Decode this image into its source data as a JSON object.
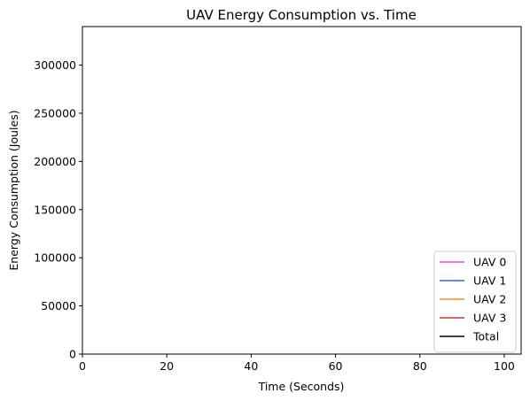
{
  "chart_data": {
    "type": "line",
    "title": "UAV Energy Consumption vs. Time",
    "xlabel": "Time (Seconds)",
    "ylabel": "Energy Consumption (Joules)",
    "xlim": [
      0,
      104
    ],
    "ylim": [
      0,
      340000
    ],
    "xticks": [
      0,
      20,
      40,
      60,
      80,
      100
    ],
    "yticks": [
      0,
      50000,
      100000,
      150000,
      200000,
      250000,
      300000
    ],
    "grid": false,
    "legend_position": "lower-right",
    "series": [
      {
        "name": "UAV 0",
        "color": "#ee44ee",
        "x": [],
        "y": []
      },
      {
        "name": "UAV 1",
        "color": "#3a64d8",
        "x": [],
        "y": []
      },
      {
        "name": "UAV 2",
        "color": "#ff8c1a",
        "x": [],
        "y": []
      },
      {
        "name": "UAV 3",
        "color": "#d62f3a",
        "x": [],
        "y": []
      },
      {
        "name": "Total",
        "color": "#000000",
        "x": [],
        "y": []
      }
    ]
  }
}
